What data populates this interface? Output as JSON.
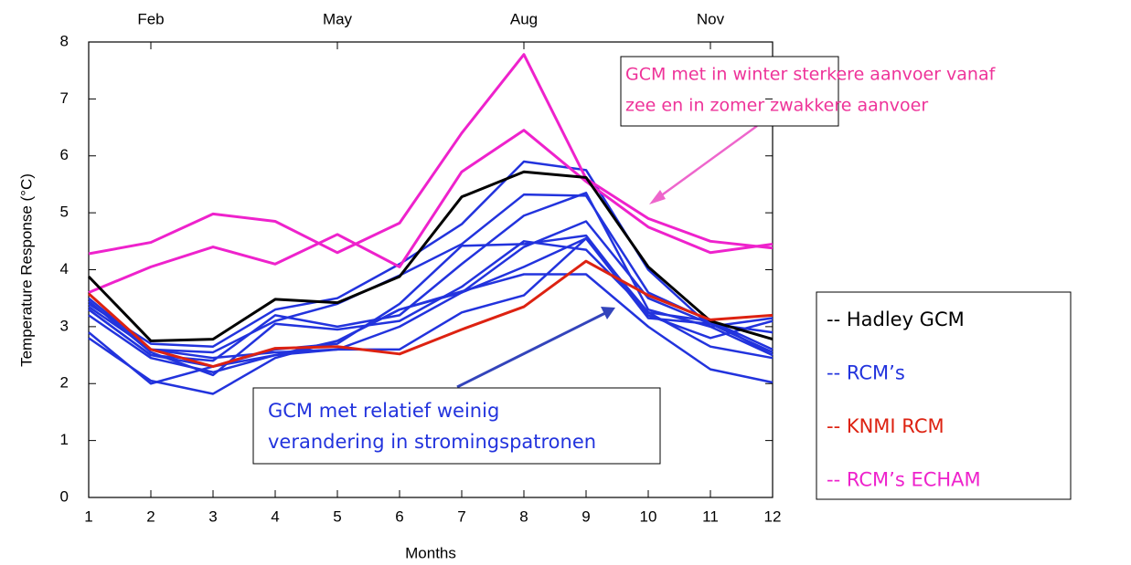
{
  "chart_data": {
    "type": "line",
    "y_label": "Temperature Response (°C)",
    "x_label": "Months",
    "x": [
      1,
      2,
      3,
      4,
      5,
      6,
      7,
      8,
      9,
      10,
      11,
      12
    ],
    "xlim": [
      1,
      12
    ],
    "xticks": [
      1,
      2,
      3,
      4,
      5,
      6,
      7,
      8,
      9,
      10,
      11,
      12
    ],
    "x2ticks": [
      {
        "value": 2,
        "label": "Feb"
      },
      {
        "value": 5,
        "label": "May"
      },
      {
        "value": 8,
        "label": "Aug"
      },
      {
        "value": 11,
        "label": "Nov"
      }
    ],
    "ylim": [
      0,
      8
    ],
    "yticks": [
      0,
      1,
      2,
      3,
      4,
      5,
      6,
      7,
      8
    ],
    "series": [
      {
        "name": "-- Hadley GCM",
        "color": "#000000",
        "lines": [
          [
            3.88,
            2.75,
            2.78,
            3.48,
            3.42,
            3.88,
            5.28,
            5.72,
            5.62,
            4.05,
            3.1,
            2.78
          ]
        ]
      },
      {
        "name": "-- RCM’s",
        "color": "#2233dd",
        "lines": [
          [
            3.4,
            2.7,
            2.65,
            3.3,
            3.5,
            4.1,
            4.8,
            5.9,
            5.75,
            4.0,
            3.0,
            2.5
          ],
          [
            3.5,
            2.6,
            2.55,
            3.1,
            3.4,
            3.9,
            4.45,
            5.32,
            5.3,
            3.6,
            3.1,
            2.6
          ],
          [
            3.3,
            2.5,
            2.4,
            3.2,
            3.0,
            3.2,
            4.1,
            4.95,
            5.35,
            3.3,
            3.0,
            3.15
          ],
          [
            2.9,
            2.0,
            2.3,
            2.6,
            2.7,
            3.4,
            4.42,
            4.45,
            4.6,
            3.2,
            2.8,
            3.1
          ],
          [
            3.2,
            2.45,
            2.2,
            2.5,
            2.75,
            3.3,
            3.6,
            4.4,
            4.85,
            3.5,
            3.05,
            2.55
          ],
          [
            3.3,
            2.5,
            2.3,
            2.5,
            2.6,
            3.0,
            3.6,
            4.05,
            4.55,
            3.25,
            2.65,
            2.45
          ],
          [
            2.8,
            2.05,
            1.82,
            2.45,
            2.75,
            3.3,
            3.62,
            3.92,
            3.92,
            3.0,
            2.25,
            2.02
          ],
          [
            3.45,
            2.55,
            2.15,
            3.05,
            2.95,
            3.1,
            3.7,
            4.5,
            4.35,
            3.25,
            3.1,
            2.5
          ],
          [
            3.35,
            2.6,
            2.45,
            2.55,
            2.6,
            2.6,
            3.25,
            3.55,
            4.55,
            3.15,
            3.05,
            2.9
          ]
        ]
      },
      {
        "name": "-- KNMI RCM",
        "color": "#dd2211",
        "lines": [
          [
            3.58,
            2.6,
            2.3,
            2.62,
            2.65,
            2.52,
            2.95,
            3.35,
            4.15,
            3.55,
            3.12,
            3.2
          ]
        ]
      },
      {
        "name": "-- RCM’s ECHAM",
        "color": "#ee22cc",
        "lines": [
          [
            4.28,
            4.48,
            4.98,
            4.85,
            4.3,
            4.82,
            6.4,
            7.78,
            5.6,
            4.9,
            4.5,
            4.38
          ],
          [
            3.6,
            4.05,
            4.4,
            4.1,
            4.62,
            4.05,
            5.72,
            6.45,
            5.55,
            4.75,
            4.3,
            4.45
          ]
        ]
      }
    ],
    "annotations": [
      {
        "lines": [
          "GCM met in winter sterkere aanvoer vanaf",
          "zee en in zomer zwakkere aanvoer"
        ],
        "color": "#ee3399"
      },
      {
        "lines": [
          "GCM met relatief weinig",
          "verandering in stromingspatronen"
        ],
        "color": "#2233dd"
      }
    ]
  }
}
